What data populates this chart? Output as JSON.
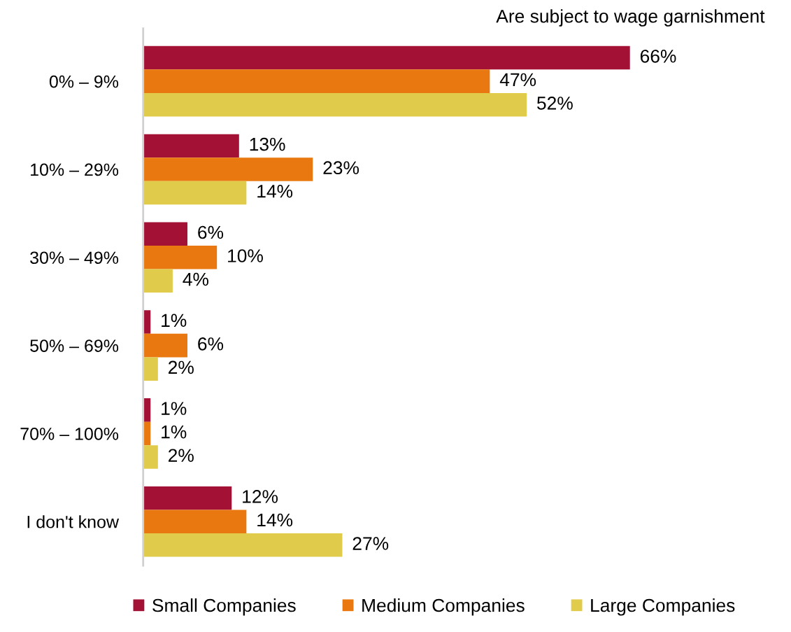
{
  "chart_data": {
    "type": "bar",
    "orientation": "horizontal",
    "title": "Are subject to wage garnishment",
    "categories": [
      "0% – 9%",
      "10% – 29%",
      "30% – 49%",
      "50% – 69%",
      "70% – 100%",
      "I don't know"
    ],
    "series": [
      {
        "name": "Small Companies",
        "color": "#a31235",
        "values": [
          66,
          13,
          6,
          1,
          1,
          12
        ],
        "value_labels": [
          "66%",
          "13%",
          "6%",
          "1%",
          "1%",
          "12%"
        ]
      },
      {
        "name": "Medium Companies",
        "color": "#e8780f",
        "values": [
          47,
          23,
          10,
          6,
          1,
          14
        ],
        "value_labels": [
          "47%",
          "23%",
          "10%",
          "6%",
          "1%",
          "14%"
        ]
      },
      {
        "name": "Large Companies",
        "color": "#e0cb4a",
        "values": [
          52,
          14,
          4,
          2,
          2,
          27
        ],
        "value_labels": [
          "52%",
          "14%",
          "4%",
          "2%",
          "2%",
          "27%"
        ]
      }
    ],
    "legend": "bottom",
    "grid": false
  }
}
